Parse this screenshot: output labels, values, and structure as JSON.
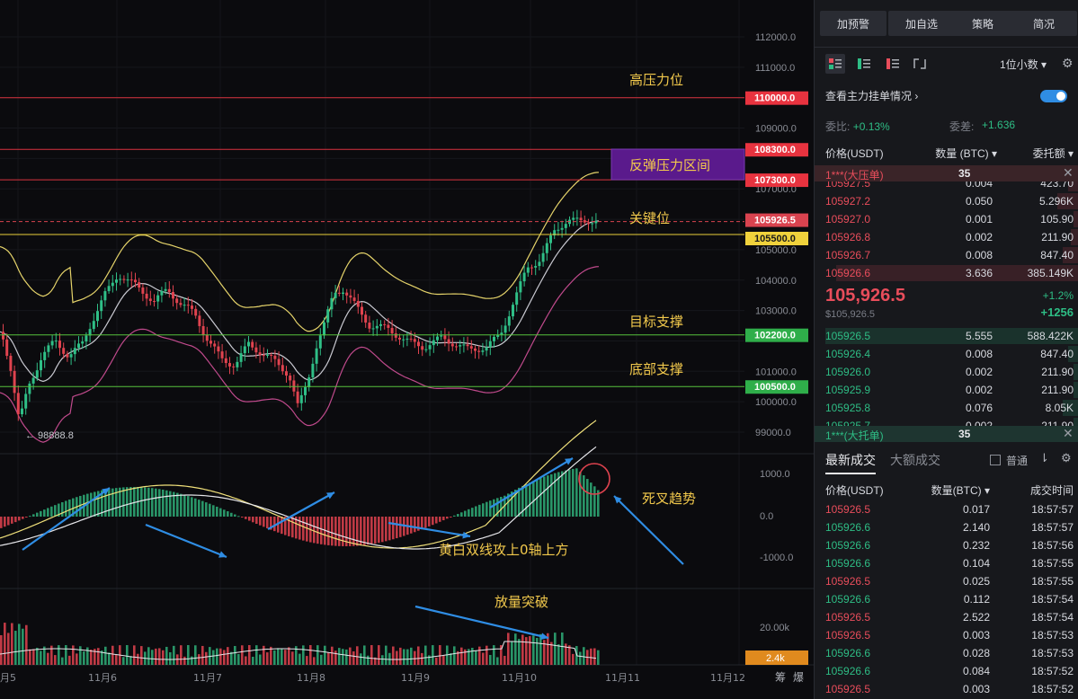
{
  "chart": {
    "y_axis_labels": [
      "112000.0",
      "111000.0",
      "109000.0",
      "107000.0",
      "105000.0",
      "104000.0",
      "103000.0",
      "101000.0",
      "100000.0",
      "99000.0"
    ],
    "price_tags": [
      {
        "value": "110000.0",
        "color": "#e8333f"
      },
      {
        "value": "108300.0",
        "color": "#e8333f"
      },
      {
        "value": "107300.0",
        "color": "#e8333f"
      },
      {
        "value": "105926.5",
        "color": "#d9434f"
      },
      {
        "value": "105500.0",
        "color": "#f0d23c"
      },
      {
        "value": "102200.0",
        "color": "#2fae4a"
      },
      {
        "value": "100500.0",
        "color": "#2fae4a"
      }
    ],
    "annotations": {
      "high_resistance": "高压力位",
      "rebound_zone": "反弹压力区间",
      "key_level": "关键位",
      "target_support": "目标支撑",
      "bottom_support": "底部支撑",
      "death_cross": "死叉趋势",
      "macd_note": "黄白双线攻上0轴上方",
      "volume_note": "放量突破"
    },
    "low_marker": "← 98888.8",
    "macd_axis": [
      "1000.0",
      "0.0",
      "-1000.0"
    ],
    "vol_axis": "20.00k",
    "vol_tag": "2.4k",
    "x_labels": [
      "月5",
      "11月6",
      "11月7",
      "11月8",
      "11月9",
      "11月10",
      "11月11",
      "11月12"
    ],
    "corner_labels": [
      "筹",
      "爆"
    ]
  },
  "side": {
    "top_buttons": [
      "加预警",
      "加自选",
      "策略",
      "简况"
    ],
    "decimal_select": "1位小数",
    "orderbook_toggle_label": "查看主力挂单情况",
    "ratio_label": "委比:",
    "ratio_value": "+0.13%",
    "diff_label": "委差:",
    "diff_value": "+1.636",
    "ob_headers": {
      "price": "价格(USDT)",
      "qty": "数量 (BTC)",
      "total": "委托额"
    },
    "big_ask": {
      "label": "1***(大压单)",
      "qty": "35"
    },
    "big_bid": {
      "label": "1***(大托单)",
      "qty": "35"
    },
    "asks": [
      {
        "price": "105927.5",
        "qty": "0.004",
        "total": "423.70"
      },
      {
        "price": "105927.2",
        "qty": "0.050",
        "total": "5.296K"
      },
      {
        "price": "105927.0",
        "qty": "0.001",
        "total": "105.90"
      },
      {
        "price": "105926.8",
        "qty": "0.002",
        "total": "211.90"
      },
      {
        "price": "105926.7",
        "qty": "0.008",
        "total": "847.40"
      },
      {
        "price": "105926.6",
        "qty": "3.636",
        "total": "385.149K"
      }
    ],
    "current": {
      "price": "105,926.5",
      "sub": "$105,926.5",
      "pct": "+1.2%",
      "chg": "+1256"
    },
    "bids": [
      {
        "price": "105926.5",
        "qty": "5.555",
        "total": "588.422K"
      },
      {
        "price": "105926.4",
        "qty": "0.008",
        "total": "847.40"
      },
      {
        "price": "105926.0",
        "qty": "0.002",
        "total": "211.90"
      },
      {
        "price": "105925.9",
        "qty": "0.002",
        "total": "211.90"
      },
      {
        "price": "105925.8",
        "qty": "0.076",
        "total": "8.05K"
      },
      {
        "price": "105925.7",
        "qty": "0.002",
        "total": "211.90"
      }
    ],
    "trade_tabs": {
      "active": "最新成交",
      "other": "大额成交",
      "normal": "普通"
    },
    "trade_headers": {
      "price": "价格(USDT)",
      "qty": "数量(BTC)",
      "time": "成交时间"
    },
    "trades": [
      {
        "price": "105926.5",
        "qty": "0.017",
        "time": "18:57:57",
        "side": "sell"
      },
      {
        "price": "105926.6",
        "qty": "2.140",
        "time": "18:57:57",
        "side": "buy"
      },
      {
        "price": "105926.6",
        "qty": "0.232",
        "time": "18:57:56",
        "side": "buy"
      },
      {
        "price": "105926.6",
        "qty": "0.104",
        "time": "18:57:55",
        "side": "buy"
      },
      {
        "price": "105926.5",
        "qty": "0.025",
        "time": "18:57:55",
        "side": "sell"
      },
      {
        "price": "105926.6",
        "qty": "0.112",
        "time": "18:57:54",
        "side": "buy"
      },
      {
        "price": "105926.5",
        "qty": "2.522",
        "time": "18:57:54",
        "side": "sell"
      },
      {
        "price": "105926.5",
        "qty": "0.003",
        "time": "18:57:53",
        "side": "sell"
      },
      {
        "price": "105926.6",
        "qty": "0.028",
        "time": "18:57:53",
        "side": "buy"
      },
      {
        "price": "105926.6",
        "qty": "0.084",
        "time": "18:57:52",
        "side": "buy"
      },
      {
        "price": "105926.5",
        "qty": "0.003",
        "time": "18:57:52",
        "side": "sell"
      }
    ]
  }
}
